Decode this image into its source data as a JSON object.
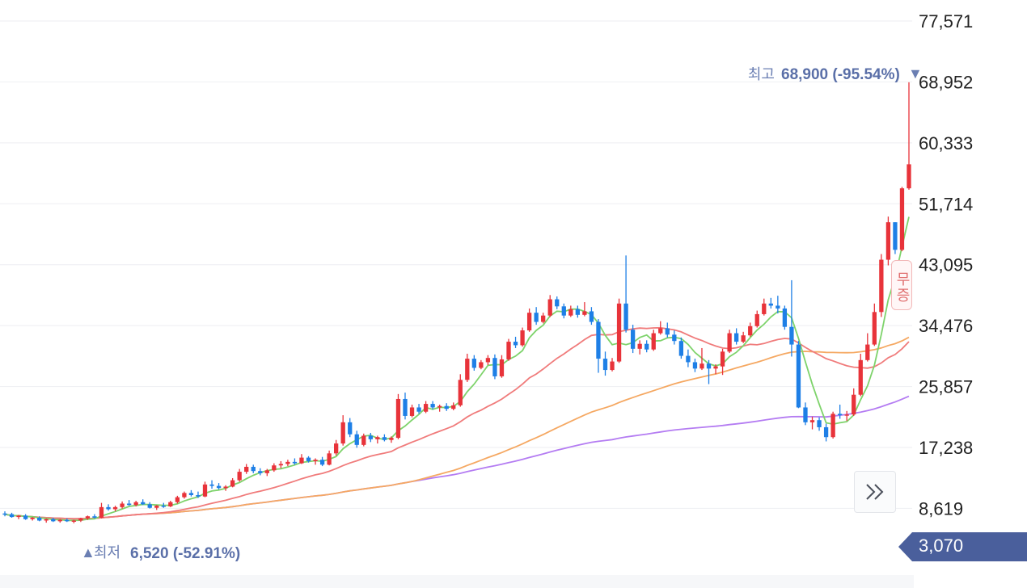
{
  "chart_data": {
    "type": "candlestick",
    "y_axis_ticks": [
      "77,571",
      "68,952",
      "60,333",
      "51,714",
      "43,095",
      "34,476",
      "25,857",
      "17,238",
      "8,619"
    ],
    "y_axis_tick_values": [
      77571,
      68952,
      60333,
      51714,
      43095,
      34476,
      25857,
      17238,
      8619
    ],
    "ylim": [
      3070,
      77571
    ],
    "grid": true,
    "colors": {
      "up": "#e8333a",
      "down": "#1e7fe6",
      "ma5": "#7ed36b",
      "ma20": "#f07b7b",
      "ma60": "#f5a862",
      "ma120": "#b47cf2"
    },
    "high_annotation": {
      "label": "최고",
      "value": "68,900 (-95.54%)",
      "marker": "▼"
    },
    "low_annotation": {
      "label": "최저",
      "value": "6,520 (-52.91%)",
      "marker": "▲"
    },
    "current_price": {
      "value": "3,070",
      "color": "#4a5f9c"
    },
    "badge_text": "무증",
    "candles_ohlc": [
      [
        7900,
        8200,
        7500,
        7800
      ],
      [
        7800,
        8000,
        7300,
        7400
      ],
      [
        7400,
        7700,
        7100,
        7600
      ],
      [
        7600,
        7800,
        7000,
        7100
      ],
      [
        7100,
        7400,
        6900,
        7300
      ],
      [
        7300,
        7500,
        6800,
        6900
      ],
      [
        6900,
        7200,
        6600,
        7100
      ],
      [
        7100,
        7300,
        6700,
        6800
      ],
      [
        6800,
        7100,
        6600,
        7000
      ],
      [
        7000,
        7200,
        6700,
        6800
      ],
      [
        6800,
        7000,
        6520,
        6900
      ],
      [
        6900,
        7300,
        6700,
        7200
      ],
      [
        7200,
        7600,
        7000,
        7500
      ],
      [
        7500,
        7800,
        7200,
        7300
      ],
      [
        7300,
        9400,
        7200,
        8800
      ],
      [
        8800,
        9200,
        8300,
        8500
      ],
      [
        8500,
        9000,
        8200,
        8800
      ],
      [
        8800,
        9600,
        8600,
        9300
      ],
      [
        9300,
        9800,
        9000,
        9100
      ],
      [
        9100,
        9700,
        8900,
        9500
      ],
      [
        9500,
        9900,
        9100,
        9200
      ],
      [
        9200,
        9500,
        8600,
        8700
      ],
      [
        8700,
        9100,
        8400,
        9000
      ],
      [
        9000,
        9400,
        8700,
        8900
      ],
      [
        8900,
        9700,
        8800,
        9500
      ],
      [
        9500,
        10400,
        9300,
        10200
      ],
      [
        10200,
        11000,
        10000,
        10800
      ],
      [
        10800,
        11200,
        10300,
        10500
      ],
      [
        10500,
        11000,
        10100,
        10300
      ],
      [
        10300,
        12400,
        10200,
        12000
      ],
      [
        12000,
        12600,
        11400,
        11800
      ],
      [
        11800,
        12200,
        11300,
        11500
      ],
      [
        11500,
        11900,
        11100,
        11700
      ],
      [
        11700,
        12900,
        11600,
        12600
      ],
      [
        12600,
        14200,
        12400,
        13800
      ],
      [
        13800,
        14900,
        13500,
        14500
      ],
      [
        14500,
        14800,
        13600,
        13900
      ],
      [
        13900,
        14300,
        13300,
        13600
      ],
      [
        13600,
        14200,
        13200,
        14000
      ],
      [
        14000,
        15000,
        13800,
        14700
      ],
      [
        14700,
        15300,
        14300,
        14900
      ],
      [
        14900,
        15500,
        14600,
        15200
      ],
      [
        15200,
        15700,
        14800,
        15000
      ],
      [
        15000,
        16300,
        14900,
        15800
      ],
      [
        15800,
        16000,
        15100,
        15300
      ],
      [
        15300,
        15700,
        14800,
        15500
      ],
      [
        15500,
        15900,
        14600,
        14800
      ],
      [
        14800,
        16800,
        14700,
        16400
      ],
      [
        16400,
        18300,
        16100,
        17800
      ],
      [
        17800,
        21800,
        17500,
        20800
      ],
      [
        20800,
        21400,
        18700,
        19100
      ],
      [
        19100,
        19600,
        17200,
        17600
      ],
      [
        17600,
        19200,
        17400,
        18900
      ],
      [
        18900,
        19300,
        18000,
        18400
      ],
      [
        18400,
        18900,
        17800,
        18700
      ],
      [
        18700,
        19100,
        18100,
        18300
      ],
      [
        18300,
        18800,
        17900,
        18600
      ],
      [
        18600,
        24800,
        18400,
        24100
      ],
      [
        24100,
        25000,
        21200,
        21700
      ],
      [
        21700,
        23300,
        21500,
        22900
      ],
      [
        22900,
        23400,
        22000,
        22300
      ],
      [
        22300,
        23800,
        22100,
        23400
      ],
      [
        23400,
        23800,
        22600,
        22900
      ],
      [
        22900,
        23300,
        22300,
        23100
      ],
      [
        23100,
        23500,
        22400,
        22700
      ],
      [
        22700,
        23600,
        22500,
        23200
      ],
      [
        23200,
        27600,
        23000,
        26800
      ],
      [
        26800,
        30500,
        26500,
        29800
      ],
      [
        29800,
        30300,
        28100,
        28500
      ],
      [
        28500,
        29600,
        28300,
        29300
      ],
      [
        29300,
        30300,
        28900,
        29900
      ],
      [
        29900,
        30400,
        26900,
        27300
      ],
      [
        27300,
        30300,
        27100,
        29700
      ],
      [
        29700,
        32600,
        29500,
        32200
      ],
      [
        32200,
        32900,
        31300,
        31700
      ],
      [
        31700,
        34200,
        31500,
        33800
      ],
      [
        33800,
        36900,
        33600,
        36300
      ],
      [
        36300,
        37100,
        34600,
        35000
      ],
      [
        35000,
        36300,
        34800,
        35900
      ],
      [
        35900,
        38800,
        35700,
        38200
      ],
      [
        38200,
        38600,
        36800,
        37200
      ],
      [
        37200,
        37600,
        35500,
        35900
      ],
      [
        35900,
        37300,
        35700,
        36800
      ],
      [
        36800,
        37300,
        35600,
        36000
      ],
      [
        36000,
        37800,
        35800,
        36500
      ],
      [
        36500,
        37100,
        34600,
        35000
      ],
      [
        35000,
        35400,
        27800,
        29800
      ],
      [
        29800,
        30800,
        27400,
        28200
      ],
      [
        28200,
        29900,
        28000,
        29400
      ],
      [
        29400,
        38300,
        29200,
        37600
      ],
      [
        37600,
        44400,
        33500,
        33900
      ],
      [
        33900,
        34600,
        30600,
        31200
      ],
      [
        31200,
        32400,
        30400,
        31900
      ],
      [
        31900,
        32400,
        30700,
        31100
      ],
      [
        31100,
        33900,
        30900,
        33400
      ],
      [
        33400,
        35100,
        33200,
        34100
      ],
      [
        34100,
        34900,
        32800,
        33200
      ],
      [
        33200,
        33800,
        31800,
        32300
      ],
      [
        32300,
        32800,
        29800,
        30200
      ],
      [
        30200,
        31100,
        28600,
        29300
      ],
      [
        29300,
        29800,
        27900,
        28400
      ],
      [
        28400,
        31300,
        28200,
        29100
      ],
      [
        29100,
        29600,
        26200,
        28400
      ],
      [
        28400,
        29000,
        27600,
        28700
      ],
      [
        28700,
        31200,
        27500,
        30800
      ],
      [
        30800,
        33900,
        30600,
        33400
      ],
      [
        33400,
        34100,
        31800,
        32200
      ],
      [
        32200,
        33600,
        32000,
        33100
      ],
      [
        33100,
        34900,
        32900,
        34400
      ],
      [
        34400,
        36600,
        34200,
        36100
      ],
      [
        36100,
        38300,
        35900,
        37600
      ],
      [
        37600,
        38400,
        36900,
        37300
      ],
      [
        37300,
        38700,
        36200,
        36900
      ],
      [
        36900,
        37300,
        33900,
        34300
      ],
      [
        34300,
        40900,
        30100,
        31800
      ],
      [
        31800,
        32300,
        22800,
        22900
      ],
      [
        22900,
        23600,
        20400,
        20800
      ],
      [
        20800,
        21600,
        19800,
        21100
      ],
      [
        21100,
        21500,
        19600,
        20100
      ],
      [
        20100,
        20600,
        18100,
        18700
      ],
      [
        18700,
        22300,
        18500,
        22000
      ],
      [
        22000,
        23300,
        21300,
        21800
      ],
      [
        21800,
        22400,
        21000,
        21900
      ],
      [
        21900,
        25600,
        21700,
        24700
      ],
      [
        24700,
        30500,
        24500,
        29600
      ],
      [
        29600,
        33400,
        29400,
        31800
      ],
      [
        31800,
        37600,
        31600,
        36400
      ],
      [
        36400,
        44600,
        35700,
        43800
      ],
      [
        43800,
        49900,
        43000,
        49100
      ],
      [
        49100,
        48700,
        44600,
        45200
      ],
      [
        45200,
        54100,
        45000,
        53900
      ],
      [
        53900,
        68900,
        53700,
        57300
      ]
    ]
  }
}
